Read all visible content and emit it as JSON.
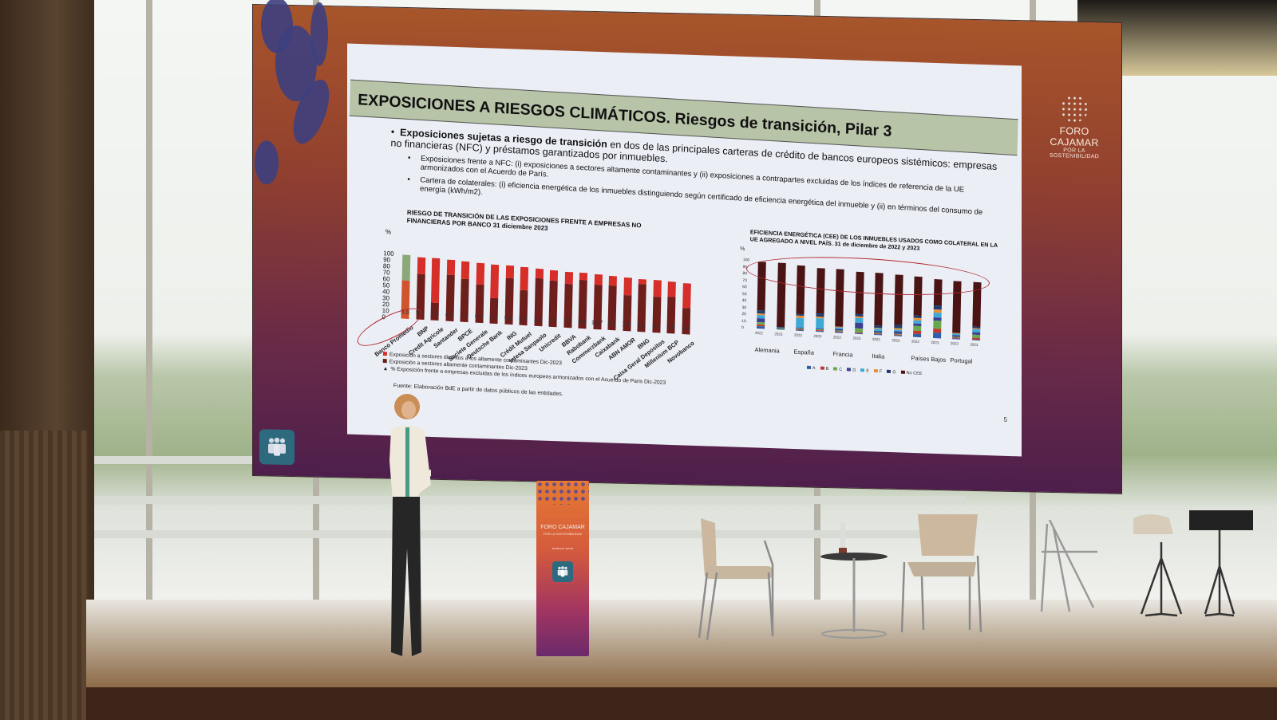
{
  "screen": {
    "brand": {
      "title": "FORO CAJAMAR",
      "subtitle": "POR LA SOSTENIBILIDAD"
    },
    "icons": [
      "people-group-icon",
      "dotted-sphere-logo-icon"
    ],
    "colors": {
      "screen_top": "#a7552a",
      "screen_bottom": "#4e1f4c",
      "blob": "#3d3f80",
      "badge": "#2d6a7d"
    }
  },
  "slide": {
    "title": "EXPOSICIONES A RIESGOS CLIMÁTICOS. Riesgos de transición, Pilar 3",
    "bullet_bold": "Exposiciones sujetas a riesgo de transición",
    "bullet_rest": " en dos de las principales carteras de crédito de bancos europeos sistémicos: empresas no financieras (NFC) y préstamos garantizados por inmuebles.",
    "sub_bullets": [
      "Exposiciones frente a NFC: (i) exposiciones a sectores altamente contaminantes y (ii) exposiciones a contrapartes excluidas de los índices de referencia de la UE armonizados con el Acuerdo de París.",
      "Cartera de colaterales: (i) eficiencia energética de los inmuebles distinguiendo según certificado de eficiencia energética del inmueble y (ii) en términos del consumo de energía (kWh/m2)."
    ],
    "source": "Fuente: Elaboración BdE a partir de datos públicos de las entidades.",
    "page_number": "5",
    "colors": {
      "title_band": "#b8c4a8",
      "slide_bg": "#eceef6",
      "red_light": "#d62f2a",
      "red_dark": "#6e1e1b",
      "highlight_ring": "#b02a30"
    }
  },
  "chart_data": [
    {
      "type": "bar",
      "stacked": true,
      "title": "RIESGO DE TRANSICIÓN DE LAS EXPOSICIONES FRENTE A EMPRESAS NO FINANCIERAS POR BANCO 31 diciembre 2023",
      "ylabel": "%",
      "ylim": [
        0,
        100
      ],
      "yticks": [
        0,
        10,
        20,
        30,
        40,
        50,
        60,
        70,
        80,
        90,
        100
      ],
      "categories": [
        "Banco Promedio",
        "BNP",
        "Credit Agricole",
        "Santander",
        "BPCE",
        "Societe Generale",
        "Deutsche Bank",
        "ING",
        "Crédit Mutuel",
        "Intesa Sanpaolo",
        "Unicredit",
        "BBVA",
        "Rabobank",
        "Commerzbank",
        "Caixabank",
        "ABN AMOR",
        "BNG",
        "Caixa Geral Depositos",
        "Millenium BCP",
        "Novobanco"
      ],
      "series": [
        {
          "name": "Exposición a sectores altamente contaminantes Dic-2023",
          "color": "#6e1e1b",
          "values": [
            60,
            71,
            27,
            73,
            68,
            60,
            40,
            73,
            55,
            75,
            72,
            69,
            76,
            70,
            70,
            56,
            75,
            56,
            57,
            41
          ]
        },
        {
          "name": "Exposición a sectores distintos a los altamente contaminantes Dic-2023",
          "color": "#d62f2a",
          "values": [
            40,
            27,
            70,
            23,
            27,
            34,
            53,
            19,
            36,
            15,
            17,
            19,
            11,
            16,
            15,
            28,
            8,
            26,
            24,
            39
          ]
        },
        {
          "name": "% Exposición frente a empresas excluidas de los índices europeos armonizados con el Acuerdo de Paris Dic-2023",
          "marker": "triangle",
          "values": [
            3.6,
            5.6,
            1.5,
            4.3,
            1.3,
            6.4,
            2.2,
            6.2,
            0.3,
            1.3,
            3.3,
            7.7,
            4.3,
            12.7,
            5.6,
            2.5,
            1.0,
            1.3,
            0.0,
            1.2
          ]
        }
      ],
      "annotation": "Banco Promedio highlighted with red ellipse; Banco Promedio top segment shown in green"
    },
    {
      "type": "bar",
      "stacked": true,
      "title": "EFICIENCIA ENERGÉTICA (CEE) DE LOS INMUEBLES USADOS COMO COLATERAL EN LA UE AGREGADO A NIVEL PAÍS. 31 de diciembre de 2022 y 2023",
      "ylabel": "%",
      "ylim": [
        0,
        100
      ],
      "yticks": [
        0,
        10,
        20,
        30,
        40,
        50,
        60,
        70,
        80,
        90,
        100
      ],
      "groups": [
        "Alemania",
        "España",
        "Francia",
        "Italia",
        "Países Bajos",
        "Portugal"
      ],
      "categories": [
        "2022",
        "2023",
        "2022",
        "2023",
        "2022",
        "2023",
        "2022",
        "2023",
        "2022",
        "2023",
        "2022",
        "2023"
      ],
      "legend": [
        "A",
        "B",
        "C",
        "D",
        "E",
        "F",
        "G",
        "No CEE"
      ],
      "series": [
        {
          "name": "A",
          "color": "#2e5fa8",
          "values": [
            3,
            0,
            1,
            1,
            1,
            1,
            1,
            1,
            5,
            8,
            1,
            1
          ]
        },
        {
          "name": "B",
          "color": "#c0392b",
          "values": [
            3,
            0,
            1,
            1,
            1,
            1,
            1,
            1,
            4,
            6,
            1,
            2
          ]
        },
        {
          "name": "C",
          "color": "#6aa84f",
          "values": [
            4,
            1,
            1,
            1,
            2,
            6,
            2,
            2,
            7,
            12,
            2,
            5
          ]
        },
        {
          "name": "D",
          "color": "#3b3f8f",
          "values": [
            5,
            1,
            2,
            2,
            2,
            8,
            2,
            3,
            4,
            5,
            2,
            4
          ]
        },
        {
          "name": "E",
          "color": "#3fa9d6",
          "values": [
            5,
            1,
            14,
            15,
            2,
            8,
            3,
            3,
            5,
            7,
            2,
            4
          ]
        },
        {
          "name": "F",
          "color": "#e69138",
          "values": [
            3,
            0,
            3,
            3,
            1,
            2,
            2,
            2,
            3,
            4,
            1,
            2
          ]
        },
        {
          "name": "G",
          "color": "#1f3c6e",
          "values": [
            4,
            1,
            3,
            4,
            1,
            3,
            3,
            4,
            4,
            6,
            1,
            2
          ]
        },
        {
          "name": "No CEE",
          "color": "#4a1414",
          "values": [
            72,
            95,
            71,
            67,
            84,
            63,
            78,
            75,
            58,
            39,
            76,
            66
          ]
        }
      ],
      "annotation": "Red ellipse highlights the No CEE share across all countries"
    }
  ],
  "stage": {
    "podium": {
      "brand_title": "FORO CAJAMAR",
      "brand_subtitle": "POR LA SOSTENIBILIDAD",
      "tagline": "sumar por sumar"
    }
  }
}
